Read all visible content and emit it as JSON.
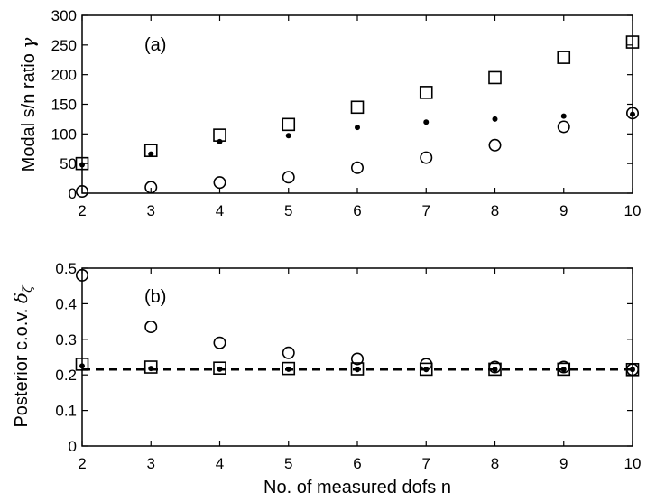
{
  "chart_data": [
    {
      "type": "scatter",
      "panel_label": "(a)",
      "ylabel": "Modal s/n ratio",
      "ylabel_symbol": "γ",
      "xlabel": "",
      "xlim": [
        2,
        10
      ],
      "ylim": [
        0,
        300
      ],
      "x_ticks": [
        "2",
        "3",
        "4",
        "5",
        "6",
        "7",
        "8",
        "9",
        "10"
      ],
      "y_ticks": [
        "0",
        "50",
        "100",
        "150",
        "200",
        "250",
        "300"
      ],
      "grid": false,
      "x": [
        2,
        3,
        4,
        5,
        6,
        7,
        8,
        9,
        10
      ],
      "series": [
        {
          "marker": "square",
          "values": [
            50,
            72,
            98,
            116,
            145,
            170,
            195,
            229,
            255
          ]
        },
        {
          "marker": "dot",
          "values": [
            48,
            66,
            87,
            97,
            111,
            120,
            125,
            130,
            133
          ]
        },
        {
          "marker": "circle",
          "values": [
            3,
            10,
            18,
            27,
            43,
            60,
            81,
            112,
            135
          ]
        }
      ]
    },
    {
      "type": "scatter",
      "panel_label": "(b)",
      "ylabel": "Posterior c.o.v.",
      "ylabel_symbol": "δ",
      "ylabel_subscript": "ζ",
      "xlabel": "No. of measured dofs n",
      "xlim": [
        2,
        10
      ],
      "ylim": [
        0,
        0.5
      ],
      "x_ticks": [
        "2",
        "3",
        "4",
        "5",
        "6",
        "7",
        "8",
        "9",
        "10"
      ],
      "y_ticks": [
        "0",
        "0.1",
        "0.2",
        "0.3",
        "0.4",
        "0.5"
      ],
      "grid": false,
      "x": [
        2,
        3,
        4,
        5,
        6,
        7,
        8,
        9,
        10
      ],
      "series": [
        {
          "marker": "circle",
          "values": [
            0.48,
            0.335,
            0.29,
            0.262,
            0.245,
            0.23,
            0.222,
            0.222,
            0.215
          ]
        },
        {
          "marker": "square",
          "values": [
            0.23,
            0.222,
            0.219,
            0.218,
            0.217,
            0.216,
            0.216,
            0.216,
            0.215
          ]
        },
        {
          "marker": "dot",
          "values": [
            0.225,
            0.218,
            0.216,
            0.216,
            0.215,
            0.215,
            0.215,
            0.215,
            0.215
          ]
        }
      ],
      "reference_line": {
        "style": "dashed",
        "y": 0.215
      }
    }
  ]
}
